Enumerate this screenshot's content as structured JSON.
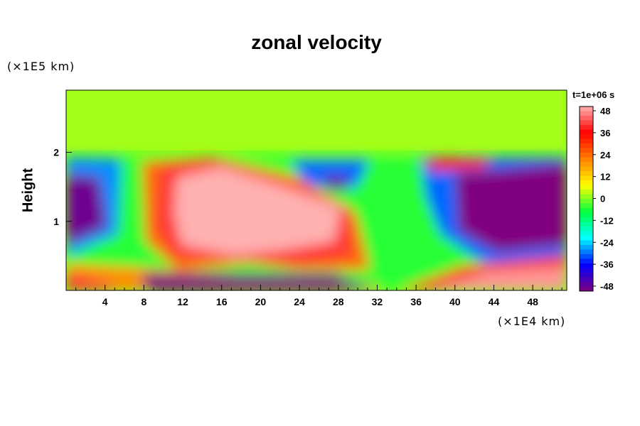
{
  "chart_data": {
    "type": "heatmap",
    "title": "zonal velocity",
    "ylabel": "Height",
    "x_unit": "(×1E4 km)",
    "y_unit": "(×1E5 km)",
    "time_label": "t=1e+06 s",
    "xlim": [
      0,
      51.5
    ],
    "ylim": [
      0,
      2.9
    ],
    "x_ticks": [
      4,
      8,
      12,
      16,
      20,
      24,
      28,
      32,
      36,
      40,
      44,
      48
    ],
    "y_ticks": [
      1,
      2
    ],
    "colorbar": {
      "ticks": [
        48,
        36,
        24,
        12,
        0,
        -12,
        -24,
        -36,
        -48
      ],
      "range": [
        -50,
        50
      ],
      "colormap": [
        "#800080",
        "#0000ff",
        "#00ffff",
        "#00ff40",
        "#ffff00",
        "#ff8000",
        "#ff0000",
        "#ffb0b0"
      ]
    },
    "fields": {
      "background": 0,
      "upper_layer_value": 2,
      "features": [
        {
          "name": "strong eastward core",
          "x": 18,
          "y": 1.05,
          "value": 50
        },
        {
          "name": "westward core east",
          "x": 44,
          "y": 1.15,
          "value": -50
        },
        {
          "name": "westward core west",
          "x": 1,
          "y": 1.2,
          "value": -45
        },
        {
          "name": "westward bottom layer",
          "x": 22,
          "y": 0.1,
          "value": -50
        },
        {
          "name": "eastward bottom right",
          "x": 46,
          "y": 0.15,
          "value": 48
        },
        {
          "name": "westward eddy",
          "x": 27,
          "y": 1.7,
          "value": -35
        }
      ]
    }
  }
}
